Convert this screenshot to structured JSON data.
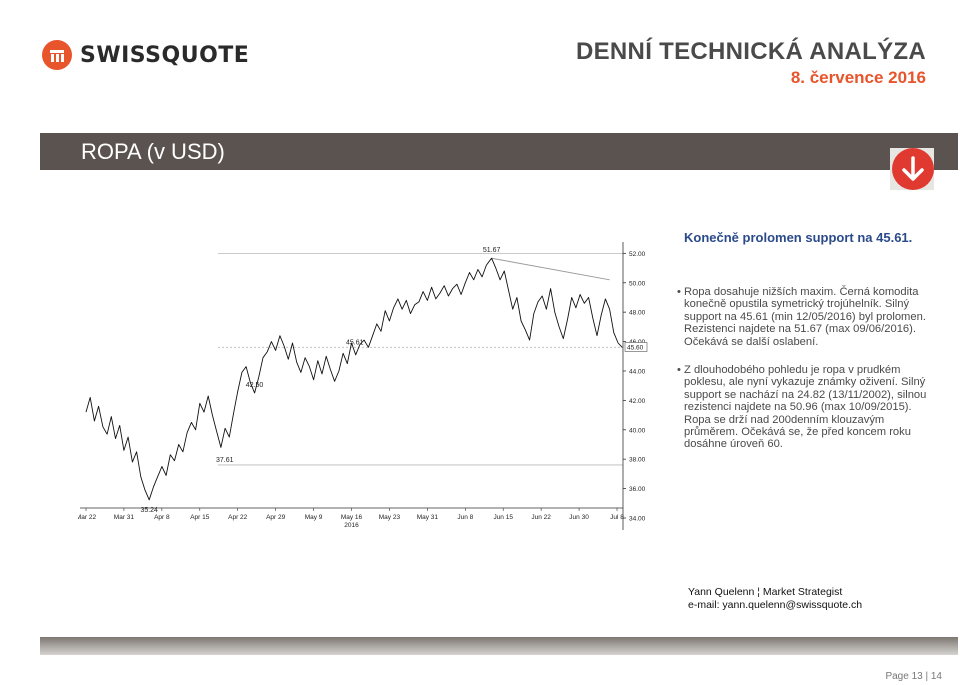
{
  "brand": {
    "name": "SWISSQUOTE",
    "color": "#e8542b",
    "icon": "swissquote-logo-icon"
  },
  "header": {
    "title": "DENNÍ TECHNICKÁ ANALÝZA",
    "date": "8. července 2016"
  },
  "section": {
    "title": "ROPA (v USD)",
    "signal_icon": "down-arrow-icon",
    "signal_color": "#e03a30"
  },
  "commentary": {
    "headline": "Konečně prolomen support na 45.61.",
    "bullets": [
      [
        "Ropa dosahuje nižších maxim. Černá komodita",
        "konečně opustila symetrický trojúhelník. Silný",
        "support na 45.61 (min 12/05/2016) byl prolomen.",
        "Rezistenci najdete na  51.67 (max 09/06/2016).",
        "Očekává se další oslabení."
      ],
      [
        "Z dlouhodobého pohledu je ropa v prudkém",
        "poklesu, ale nyní vykazuje známky oživení. Silný",
        "support se nachází na 24.82 (13/11/2002), silnou",
        "rezistenci najdete na 50.96 (max 10/09/2015).",
        "Ropa se drží nad 200denním klouzavým",
        "průměrem. Očekává se, že před koncem roku",
        "dosáhne úroveň 60."
      ]
    ]
  },
  "author": {
    "line1": "Yann Quelenn ¦ Market Strategist",
    "line2": "e-mail: yann.quelenn@swissquote.ch"
  },
  "footer": {
    "page": "Page 13 | 14"
  },
  "chart_data": {
    "type": "line",
    "x_ticks": [
      "Mar 22",
      "Mar 31",
      "Apr 8",
      "Apr 15",
      "Apr 22",
      "Apr 29",
      "May 9",
      "May 16",
      "May 23",
      "May 31",
      "Jun 8",
      "Jun 15",
      "Jun 22",
      "Jun 30",
      "Jul 8"
    ],
    "x_year_label": "2016",
    "y_ticks": [
      34.0,
      36.0,
      38.0,
      40.0,
      42.0,
      44.0,
      46.0,
      48.0,
      50.0,
      52.0
    ],
    "ylim": [
      34.0,
      52.5
    ],
    "last_price": 45.6,
    "last_price_label": "45.60",
    "levels": [
      {
        "value": 37.61,
        "label": "37.61"
      },
      {
        "value": 45.61,
        "label": "45.61"
      },
      {
        "value": 52.0,
        "label": ""
      }
    ],
    "annotations": [
      {
        "label": "51.67",
        "value": 51.67,
        "x": 38.5
      },
      {
        "label": "42.50",
        "value": 42.5,
        "x": 16.0
      },
      {
        "label": "35.24",
        "value": 35.24,
        "x": 6.0
      }
    ],
    "trendline": [
      [
        38.5,
        51.67
      ],
      [
        49.7,
        50.2
      ]
    ],
    "series": [
      {
        "values": [
          [
            0,
            41.2
          ],
          [
            0.4,
            42.2
          ],
          [
            0.8,
            40.6
          ],
          [
            1.2,
            41.6
          ],
          [
            1.6,
            40.2
          ],
          [
            2.0,
            39.7
          ],
          [
            2.4,
            40.9
          ],
          [
            2.8,
            39.4
          ],
          [
            3.2,
            40.3
          ],
          [
            3.6,
            38.6
          ],
          [
            4.0,
            39.5
          ],
          [
            4.4,
            37.8
          ],
          [
            4.8,
            38.5
          ],
          [
            5.2,
            36.8
          ],
          [
            5.6,
            35.9
          ],
          [
            6.0,
            35.24
          ],
          [
            6.4,
            36.1
          ],
          [
            6.8,
            36.8
          ],
          [
            7.2,
            37.5
          ],
          [
            7.6,
            36.9
          ],
          [
            8.0,
            38.3
          ],
          [
            8.4,
            37.9
          ],
          [
            8.8,
            39.0
          ],
          [
            9.2,
            38.5
          ],
          [
            9.6,
            39.8
          ],
          [
            10.0,
            40.5
          ],
          [
            10.4,
            40.0
          ],
          [
            10.8,
            41.8
          ],
          [
            11.2,
            41.2
          ],
          [
            11.6,
            42.3
          ],
          [
            12.0,
            41.0
          ],
          [
            12.4,
            39.9
          ],
          [
            12.8,
            38.8
          ],
          [
            13.2,
            40.1
          ],
          [
            13.6,
            39.5
          ],
          [
            14.0,
            41.1
          ],
          [
            14.4,
            42.6
          ],
          [
            14.8,
            43.9
          ],
          [
            15.2,
            44.3
          ],
          [
            15.6,
            43.2
          ],
          [
            16.0,
            42.5
          ],
          [
            16.4,
            43.6
          ],
          [
            16.8,
            44.9
          ],
          [
            17.2,
            45.3
          ],
          [
            17.6,
            46.0
          ],
          [
            18.0,
            45.4
          ],
          [
            18.4,
            46.4
          ],
          [
            18.8,
            45.7
          ],
          [
            19.2,
            44.8
          ],
          [
            19.6,
            45.9
          ],
          [
            20.0,
            44.6
          ],
          [
            20.4,
            43.9
          ],
          [
            20.8,
            44.9
          ],
          [
            21.2,
            44.3
          ],
          [
            21.6,
            43.4
          ],
          [
            22.0,
            44.7
          ],
          [
            22.4,
            43.8
          ],
          [
            22.8,
            45.0
          ],
          [
            23.2,
            44.1
          ],
          [
            23.6,
            43.3
          ],
          [
            24.0,
            44.0
          ],
          [
            24.4,
            45.2
          ],
          [
            24.8,
            44.5
          ],
          [
            25.2,
            45.9
          ],
          [
            25.6,
            45.1
          ],
          [
            26.0,
            45.8
          ],
          [
            26.4,
            46.1
          ],
          [
            26.8,
            45.61
          ],
          [
            27.2,
            46.4
          ],
          [
            27.6,
            47.2
          ],
          [
            28.0,
            46.7
          ],
          [
            28.4,
            48.1
          ],
          [
            28.8,
            47.4
          ],
          [
            29.2,
            48.3
          ],
          [
            29.6,
            48.9
          ],
          [
            30.0,
            48.2
          ],
          [
            30.4,
            48.8
          ],
          [
            30.8,
            47.9
          ],
          [
            31.2,
            48.5
          ],
          [
            31.6,
            48.7
          ],
          [
            32.0,
            49.4
          ],
          [
            32.4,
            48.8
          ],
          [
            32.8,
            49.7
          ],
          [
            33.2,
            48.9
          ],
          [
            33.6,
            49.3
          ],
          [
            34.0,
            49.8
          ],
          [
            34.4,
            49.1
          ],
          [
            34.8,
            49.6
          ],
          [
            35.2,
            49.9
          ],
          [
            35.6,
            49.2
          ],
          [
            36.0,
            50.0
          ],
          [
            36.4,
            50.7
          ],
          [
            36.8,
            50.2
          ],
          [
            37.2,
            50.9
          ],
          [
            37.6,
            50.4
          ],
          [
            38.0,
            51.2
          ],
          [
            38.5,
            51.67
          ],
          [
            38.9,
            51.0
          ],
          [
            39.3,
            50.2
          ],
          [
            39.7,
            50.8
          ],
          [
            40.1,
            49.5
          ],
          [
            40.5,
            48.2
          ],
          [
            40.9,
            49.0
          ],
          [
            41.3,
            47.4
          ],
          [
            41.7,
            46.8
          ],
          [
            42.1,
            46.1
          ],
          [
            42.5,
            47.9
          ],
          [
            42.9,
            48.7
          ],
          [
            43.3,
            49.1
          ],
          [
            43.7,
            48.2
          ],
          [
            44.1,
            49.6
          ],
          [
            44.5,
            48.0
          ],
          [
            44.9,
            47.0
          ],
          [
            45.3,
            46.2
          ],
          [
            45.7,
            47.5
          ],
          [
            46.1,
            49.0
          ],
          [
            46.5,
            48.3
          ],
          [
            46.9,
            49.2
          ],
          [
            47.3,
            48.6
          ],
          [
            47.7,
            49.0
          ],
          [
            48.1,
            47.6
          ],
          [
            48.5,
            46.4
          ],
          [
            48.9,
            47.8
          ],
          [
            49.3,
            48.9
          ],
          [
            49.7,
            48.2
          ],
          [
            50.1,
            46.6
          ],
          [
            50.5,
            45.9
          ],
          [
            50.9,
            45.6
          ]
        ]
      }
    ],
    "colors": {
      "line": "#111111",
      "levels": "#b9b9b9",
      "trendline": "#9a9a9a",
      "axis": "#333333"
    }
  }
}
